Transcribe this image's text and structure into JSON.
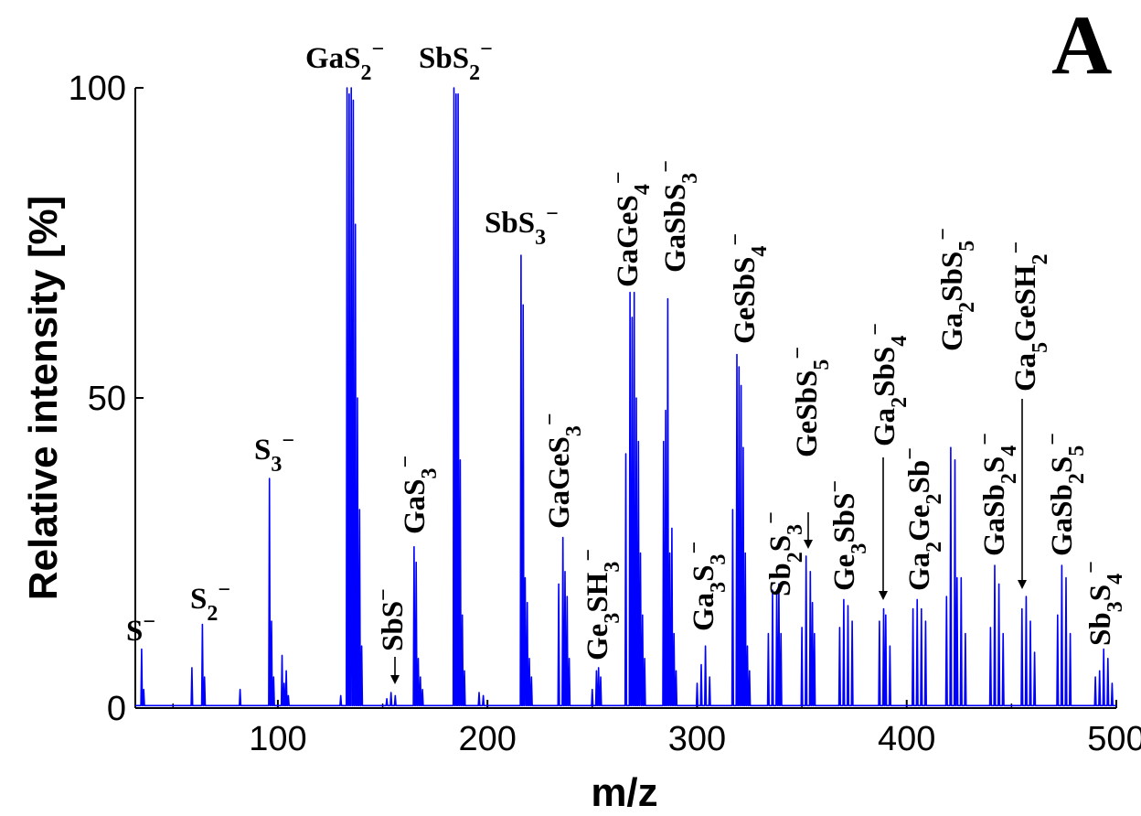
{
  "chart_data": {
    "type": "line",
    "panel_label": "A",
    "xlabel": "m/z",
    "ylabel": "Relative intensity [%]",
    "xlim": [
      32,
      500
    ],
    "ylim": [
      0,
      100
    ],
    "x_ticks": [
      100,
      200,
      300,
      400,
      500
    ],
    "y_ticks": [
      0,
      50,
      100
    ],
    "grid": false,
    "line_color": "#0000ff",
    "series": [
      {
        "peaks": [
          [
            35,
            9.5
          ],
          [
            36,
            3
          ],
          [
            59,
            6.5
          ],
          [
            64,
            13.5
          ],
          [
            65,
            5
          ],
          [
            82,
            3
          ],
          [
            96,
            37
          ],
          [
            97,
            14
          ],
          [
            98,
            5
          ],
          [
            102,
            8.5
          ],
          [
            103,
            4
          ],
          [
            104,
            6
          ],
          [
            105,
            2
          ],
          [
            130,
            2
          ],
          [
            133,
            100
          ],
          [
            134,
            99
          ],
          [
            135,
            100
          ],
          [
            136,
            98
          ],
          [
            137,
            78
          ],
          [
            138,
            50
          ],
          [
            139,
            32
          ],
          [
            140,
            10
          ],
          [
            152,
            1.5
          ],
          [
            154,
            2.5
          ],
          [
            156,
            2
          ],
          [
            165,
            26
          ],
          [
            166,
            23.5
          ],
          [
            167,
            8
          ],
          [
            168,
            5
          ],
          [
            169,
            3
          ],
          [
            184,
            100
          ],
          [
            185,
            99
          ],
          [
            186,
            99
          ],
          [
            187,
            40
          ],
          [
            188,
            15
          ],
          [
            189,
            6
          ],
          [
            196,
            2.5
          ],
          [
            198,
            2
          ],
          [
            216,
            73
          ],
          [
            217,
            65
          ],
          [
            218,
            21
          ],
          [
            219,
            17
          ],
          [
            220,
            8
          ],
          [
            221,
            5
          ],
          [
            234,
            20
          ],
          [
            236,
            27.5
          ],
          [
            237,
            22
          ],
          [
            238,
            18
          ],
          [
            239,
            8
          ],
          [
            250,
            3
          ],
          [
            252,
            6
          ],
          [
            253,
            6.5
          ],
          [
            254,
            5
          ],
          [
            266,
            41
          ],
          [
            268,
            67
          ],
          [
            269,
            63
          ],
          [
            270,
            67
          ],
          [
            271,
            50
          ],
          [
            272,
            43
          ],
          [
            273,
            25
          ],
          [
            274,
            15
          ],
          [
            275,
            8
          ],
          [
            284,
            43
          ],
          [
            285,
            48
          ],
          [
            286,
            66
          ],
          [
            287,
            25
          ],
          [
            288,
            29
          ],
          [
            289,
            12
          ],
          [
            290,
            6
          ],
          [
            300,
            4
          ],
          [
            302,
            7
          ],
          [
            304,
            10
          ],
          [
            306,
            5
          ],
          [
            317,
            32
          ],
          [
            319,
            57
          ],
          [
            320,
            55
          ],
          [
            321,
            52
          ],
          [
            322,
            42
          ],
          [
            323,
            25
          ],
          [
            324,
            10
          ],
          [
            325,
            6
          ],
          [
            334,
            12
          ],
          [
            336,
            19
          ],
          [
            338,
            19
          ],
          [
            339,
            20
          ],
          [
            340,
            12
          ],
          [
            350,
            13
          ],
          [
            352,
            24.5
          ],
          [
            354,
            22
          ],
          [
            355,
            17
          ],
          [
            356,
            12
          ],
          [
            368,
            13
          ],
          [
            370,
            17.5
          ],
          [
            372,
            16.5
          ],
          [
            374,
            14
          ],
          [
            387,
            14
          ],
          [
            389,
            16
          ],
          [
            390,
            15
          ],
          [
            392,
            10
          ],
          [
            403,
            16
          ],
          [
            405,
            17.5
          ],
          [
            407,
            16
          ],
          [
            409,
            14
          ],
          [
            419,
            18
          ],
          [
            421,
            42
          ],
          [
            423,
            40
          ],
          [
            424,
            21
          ],
          [
            426,
            21
          ],
          [
            428,
            12
          ],
          [
            440,
            13
          ],
          [
            442,
            23
          ],
          [
            444,
            20
          ],
          [
            446,
            12
          ],
          [
            455,
            16
          ],
          [
            457,
            18
          ],
          [
            459,
            14
          ],
          [
            461,
            9
          ],
          [
            472,
            15
          ],
          [
            474,
            23
          ],
          [
            476,
            21
          ],
          [
            478,
            12
          ],
          [
            490,
            5
          ],
          [
            492,
            6
          ],
          [
            494,
            9.5
          ],
          [
            496,
            8
          ],
          [
            498,
            4
          ]
        ]
      }
    ],
    "annotations": [
      {
        "base": "S",
        "sup": "−",
        "x": 36,
        "y": 9.5
      },
      {
        "base": "S",
        "sub": "2",
        "sup": "−",
        "x": 64,
        "y": 13.5
      },
      {
        "base": "S",
        "sub": "3",
        "sup": "−",
        "x": 96,
        "y": 37
      },
      {
        "base": "GaS",
        "sub": "2",
        "sup": "−",
        "x": 134,
        "y": 100
      },
      {
        "base": "SbS",
        "sub": "2",
        "sup": "−",
        "x": 185,
        "y": 100
      },
      {
        "base": "SbS",
        "sub": "3",
        "sup": "−",
        "x": 217,
        "y": 73
      },
      {
        "base": "SbS",
        "sup": "−",
        "x": 154,
        "y": 2.5,
        "rotated": true,
        "arrow": true
      },
      {
        "base": "GaS",
        "sub": "3",
        "sup": "−",
        "x": 166,
        "y": 26,
        "rotated": true
      },
      {
        "base": "GaGeS",
        "sub": "3",
        "sup": "−",
        "x": 236,
        "y": 27.5,
        "rotated": true
      },
      {
        "base": "Ge",
        "sub": "3",
        "mid": "SH",
        "sub2": "3",
        "sup": "−",
        "x": 253,
        "y": 6.5,
        "rotated": true
      },
      {
        "base": "GaGeS",
        "sub": "4",
        "sup": "−",
        "x": 269,
        "y": 67,
        "rotated": true
      },
      {
        "base": "GaSbS",
        "sub": "3",
        "sup": "−",
        "x": 286,
        "y": 66,
        "rotated": true
      },
      {
        "base": "Ga",
        "sub": "3",
        "mid": "S",
        "sub2": "3",
        "sup": "−",
        "x": 304,
        "y": 10,
        "rotated": true
      },
      {
        "base": "GeSbS",
        "sub": "4",
        "sup": "−",
        "x": 319,
        "y": 57,
        "rotated": true
      },
      {
        "base": "Sb",
        "sub": "2",
        "mid": "S",
        "sub2": "3",
        "sup": "−",
        "x": 339,
        "y": 20,
        "rotated": true
      },
      {
        "base": "GeSbS",
        "sub": "5",
        "sup": "−",
        "x": 352,
        "y": 24.5,
        "rotated": true,
        "arrow": true
      },
      {
        "base": "Ge",
        "sub": "3",
        "mid": "SbS",
        "sup": "−",
        "x": 370,
        "y": 17.5,
        "rotated": true
      },
      {
        "base": "Ga",
        "sub": "2",
        "mid": "SbS",
        "sub2": "4",
        "sup": "−",
        "x": 389,
        "y": 16,
        "rotated": true,
        "arrow": true
      },
      {
        "base": "Ga",
        "sub": "2",
        "mid": "Ge",
        "sub2": "2",
        "tail": "Sb",
        "sup": "−",
        "x": 405,
        "y": 17.5,
        "rotated": true
      },
      {
        "base": "Ga",
        "sub": "2",
        "mid": "SbS",
        "sub2": "5",
        "sup": "−",
        "x": 421,
        "y": 42,
        "rotated": true
      },
      {
        "base": "GaSb",
        "sub": "2",
        "mid": "S",
        "sub2": "4",
        "sup": "−",
        "x": 442,
        "y": 23,
        "rotated": true
      },
      {
        "base": "Ga",
        "sub": "5",
        "mid": "GeSH",
        "sub2": "2",
        "sup": "−",
        "x": 457,
        "y": 18,
        "rotated": true,
        "arrow": true
      },
      {
        "base": "GaSb",
        "sub": "2",
        "mid": "S",
        "sub2": "5",
        "sup": "−",
        "x": 474,
        "y": 23,
        "rotated": true
      },
      {
        "base": "Sb",
        "sub": "3",
        "mid": "S",
        "sub2": "4",
        "sup": "−",
        "x": 494,
        "y": 9.5,
        "rotated": true
      }
    ]
  }
}
